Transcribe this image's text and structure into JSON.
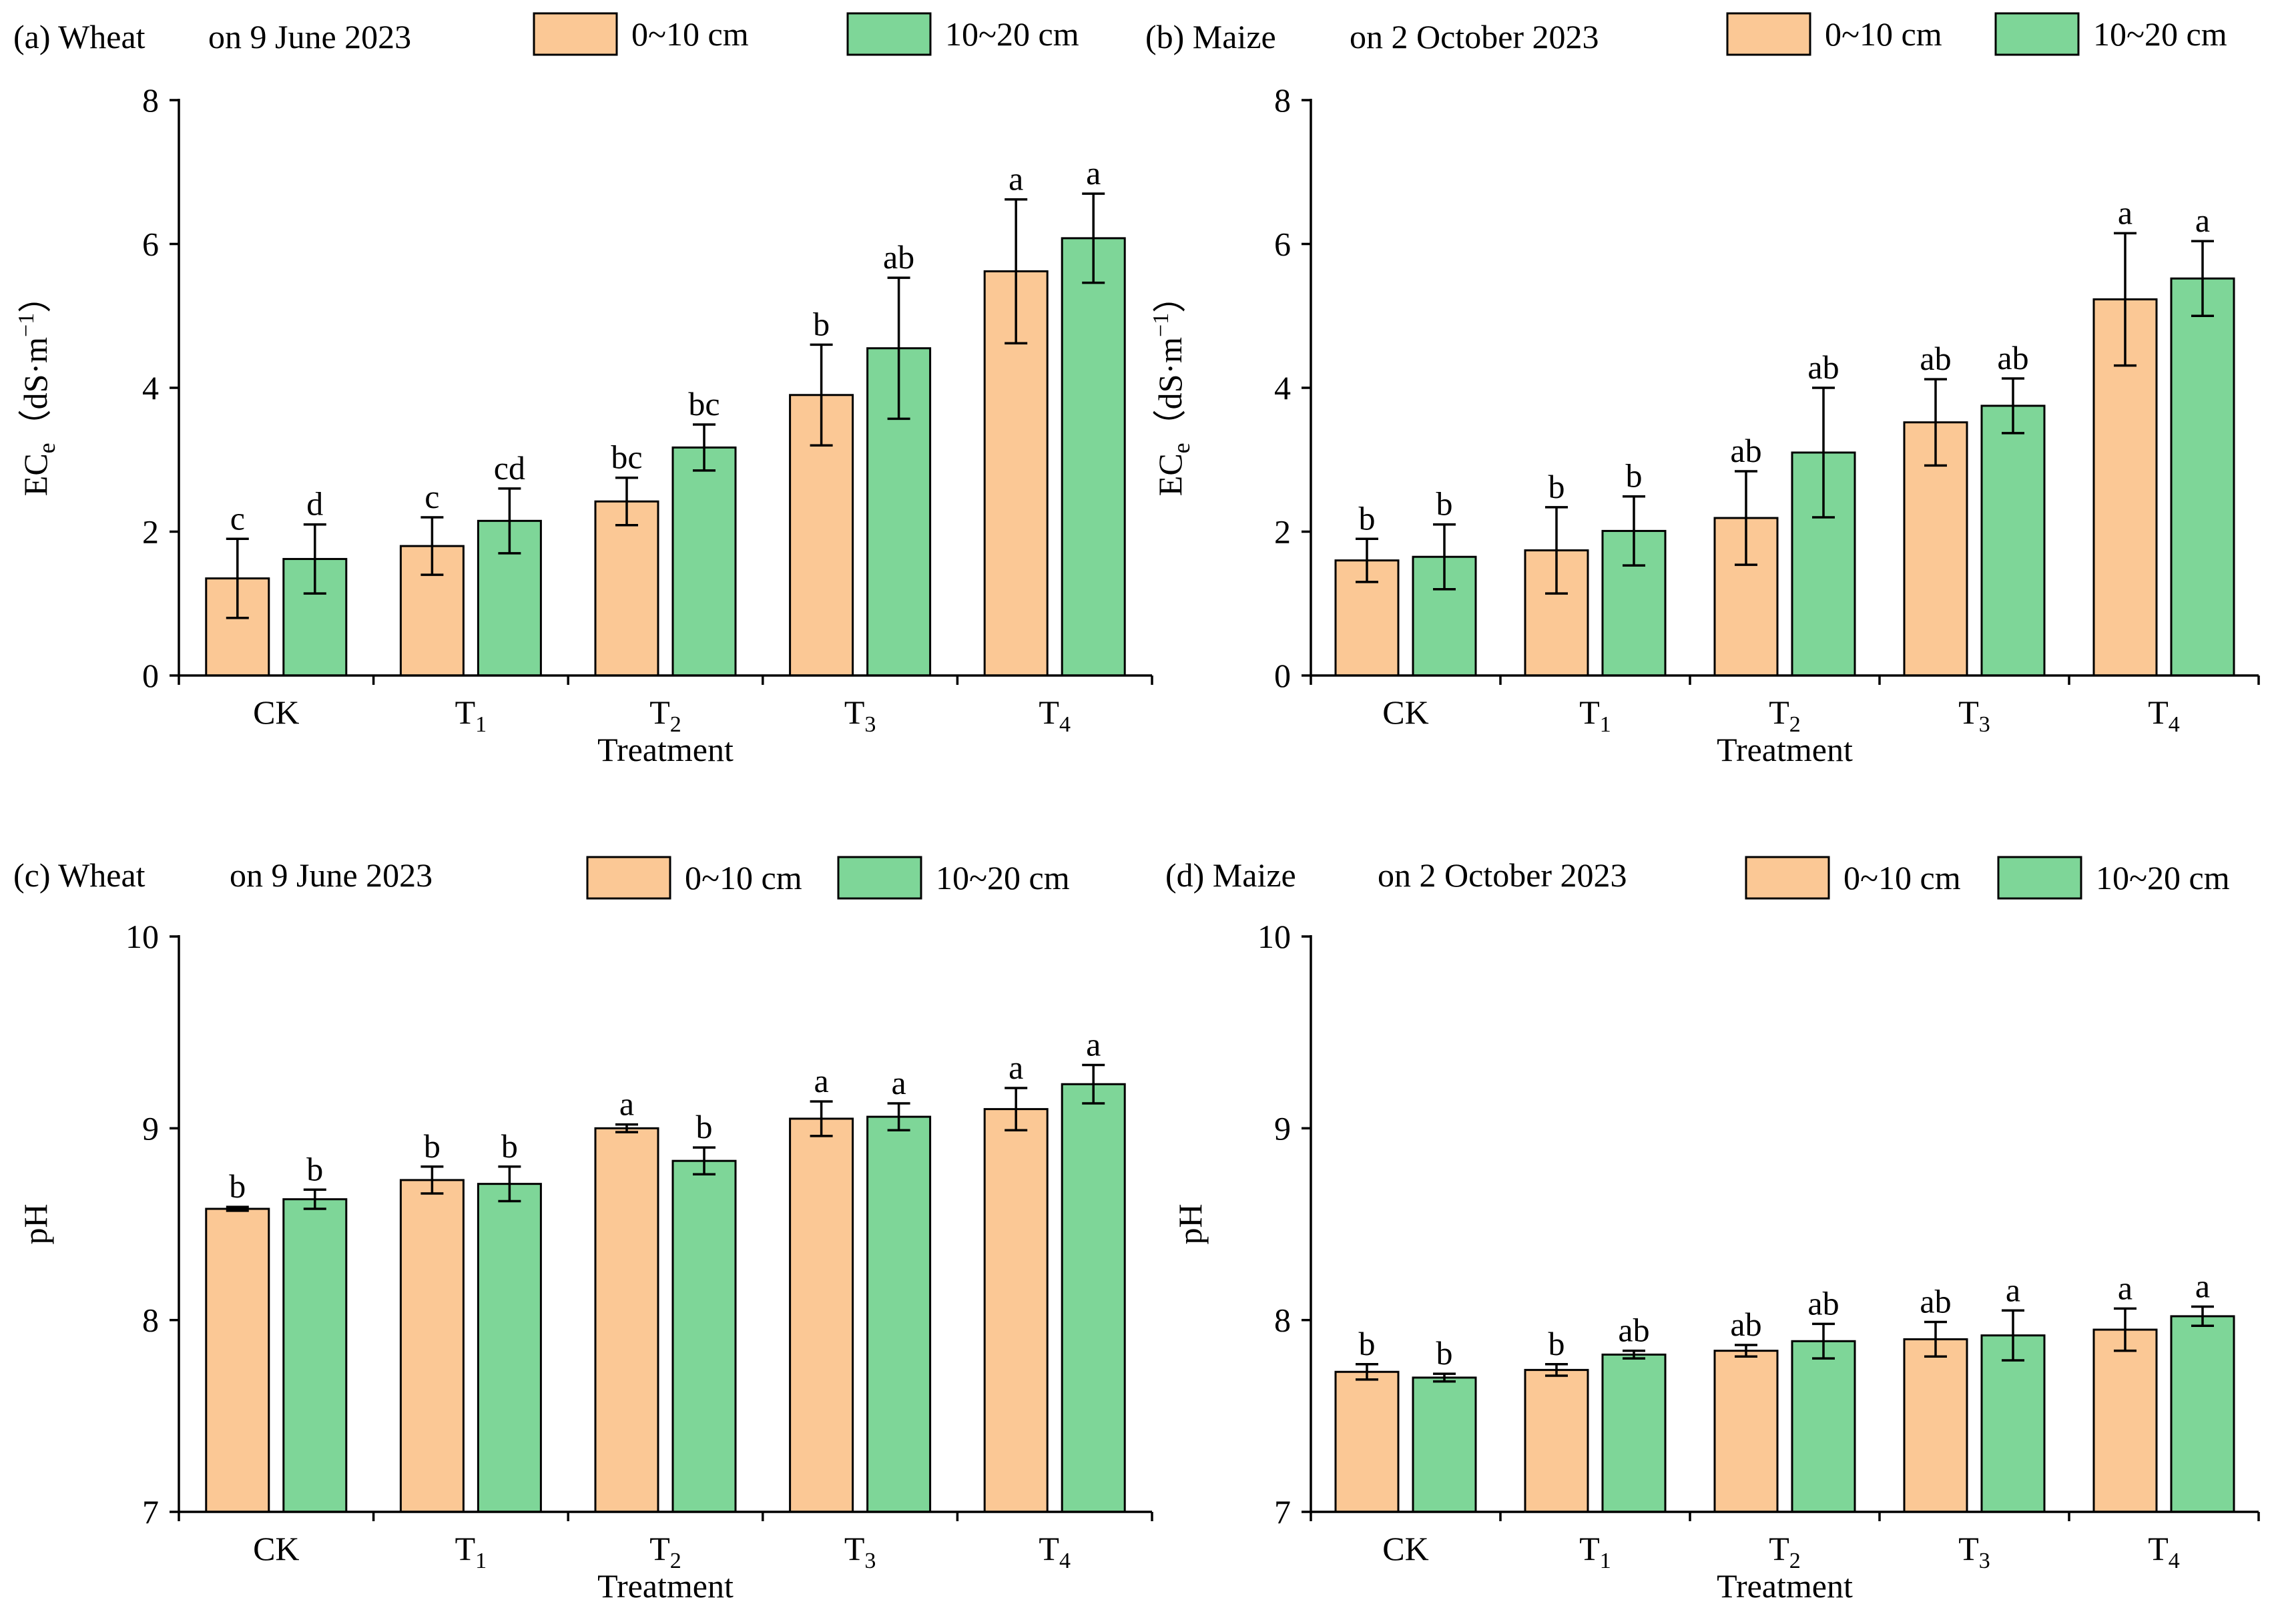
{
  "chart_data": [
    {
      "type": "bar",
      "panel_label": "(a) Wheat",
      "date_label": "on 9 June 2023",
      "categories": [
        {
          "main": "CK",
          "sub": ""
        },
        {
          "main": "T",
          "sub": "1"
        },
        {
          "main": "T",
          "sub": "2"
        },
        {
          "main": "T",
          "sub": "3"
        },
        {
          "main": "T",
          "sub": "4"
        }
      ],
      "xlabel": "Treatment",
      "ylabel": {
        "main": "EC",
        "sub": "e",
        "unit_open": "（dS·m",
        "unit_sup": "−1",
        "unit_close": "）"
      },
      "ylim": [
        0,
        8
      ],
      "yticks": [
        "0",
        "2",
        "4",
        "6",
        "8"
      ],
      "series": [
        {
          "name": "0~10 cm",
          "color": "#FBC895",
          "values": [
            1.35,
            1.8,
            2.42,
            3.9,
            5.62
          ],
          "errors": [
            0.55,
            0.4,
            0.33,
            0.7,
            1.0
          ],
          "letters": [
            "c",
            "c",
            "bc",
            "b",
            "a"
          ]
        },
        {
          "name": "10~20 cm",
          "color": "#7ED698",
          "values": [
            1.62,
            2.15,
            3.17,
            4.55,
            6.08
          ],
          "errors": [
            0.48,
            0.45,
            0.32,
            0.98,
            0.62
          ],
          "letters": [
            "d",
            "cd",
            "bc",
            "ab",
            "a"
          ]
        }
      ]
    },
    {
      "type": "bar",
      "panel_label": "(b) Maize",
      "date_label": "on 2 October 2023",
      "categories": [
        {
          "main": "CK",
          "sub": ""
        },
        {
          "main": "T",
          "sub": "1"
        },
        {
          "main": "T",
          "sub": "2"
        },
        {
          "main": "T",
          "sub": "3"
        },
        {
          "main": "T",
          "sub": "4"
        }
      ],
      "xlabel": "Treatment",
      "ylabel": {
        "main": "EC",
        "sub": "e",
        "unit_open": "（dS·m",
        "unit_sup": "−1",
        "unit_close": "）"
      },
      "ylim": [
        0,
        8
      ],
      "yticks": [
        "0",
        "2",
        "4",
        "6",
        "8"
      ],
      "series": [
        {
          "name": "0~10 cm",
          "color": "#FBC895",
          "values": [
            1.6,
            1.74,
            2.19,
            3.52,
            5.23
          ],
          "errors": [
            0.3,
            0.6,
            0.65,
            0.6,
            0.92
          ],
          "letters": [
            "b",
            "b",
            "ab",
            "ab",
            "a"
          ]
        },
        {
          "name": "10~20 cm",
          "color": "#7ED698",
          "values": [
            1.65,
            2.01,
            3.1,
            3.75,
            5.52
          ],
          "errors": [
            0.45,
            0.48,
            0.9,
            0.38,
            0.52
          ],
          "letters": [
            "b",
            "b",
            "ab",
            "ab",
            "a"
          ]
        }
      ]
    },
    {
      "type": "bar",
      "panel_label": "(c) Wheat",
      "date_label": "on 9 June 2023",
      "categories": [
        {
          "main": "CK",
          "sub": ""
        },
        {
          "main": "T",
          "sub": "1"
        },
        {
          "main": "T",
          "sub": "2"
        },
        {
          "main": "T",
          "sub": "3"
        },
        {
          "main": "T",
          "sub": "4"
        }
      ],
      "xlabel": "Treatment",
      "ylabel": {
        "main": "pH",
        "sub": "",
        "unit_open": "",
        "unit_sup": "",
        "unit_close": ""
      },
      "ylim": [
        7,
        10
      ],
      "yticks": [
        "7",
        "8",
        "9",
        "10"
      ],
      "series": [
        {
          "name": "0~10 cm",
          "color": "#FBC895",
          "values": [
            8.58,
            8.73,
            9.0,
            9.05,
            9.1
          ],
          "errors": [
            0.01,
            0.07,
            0.02,
            0.09,
            0.11
          ],
          "letters": [
            "b",
            "b",
            "a",
            "a",
            "a"
          ]
        },
        {
          "name": "10~20 cm",
          "color": "#7ED698",
          "values": [
            8.63,
            8.71,
            8.83,
            9.06,
            9.23
          ],
          "errors": [
            0.05,
            0.09,
            0.07,
            0.07,
            0.1
          ],
          "letters": [
            "b",
            "b",
            "b",
            "a",
            "a"
          ]
        }
      ]
    },
    {
      "type": "bar",
      "panel_label": "(d) Maize",
      "date_label": "on 2 October 2023",
      "categories": [
        {
          "main": "CK",
          "sub": ""
        },
        {
          "main": "T",
          "sub": "1"
        },
        {
          "main": "T",
          "sub": "2"
        },
        {
          "main": "T",
          "sub": "3"
        },
        {
          "main": "T",
          "sub": "4"
        }
      ],
      "xlabel": "Treatment",
      "ylabel": {
        "main": "pH",
        "sub": "",
        "unit_open": "",
        "unit_sup": "",
        "unit_close": ""
      },
      "ylim": [
        7,
        10
      ],
      "yticks": [
        "7",
        "8",
        "9",
        "10"
      ],
      "series": [
        {
          "name": "0~10 cm",
          "color": "#FBC895",
          "values": [
            7.73,
            7.74,
            7.84,
            7.9,
            7.95
          ],
          "errors": [
            0.04,
            0.03,
            0.03,
            0.09,
            0.11
          ],
          "letters": [
            "b",
            "b",
            "ab",
            "ab",
            "a"
          ]
        },
        {
          "name": "10~20 cm",
          "color": "#7ED698",
          "values": [
            7.7,
            7.82,
            7.89,
            7.92,
            8.02
          ],
          "errors": [
            0.02,
            0.02,
            0.09,
            0.13,
            0.05
          ],
          "letters": [
            "b",
            "ab",
            "ab",
            "a",
            "a"
          ]
        }
      ]
    }
  ]
}
